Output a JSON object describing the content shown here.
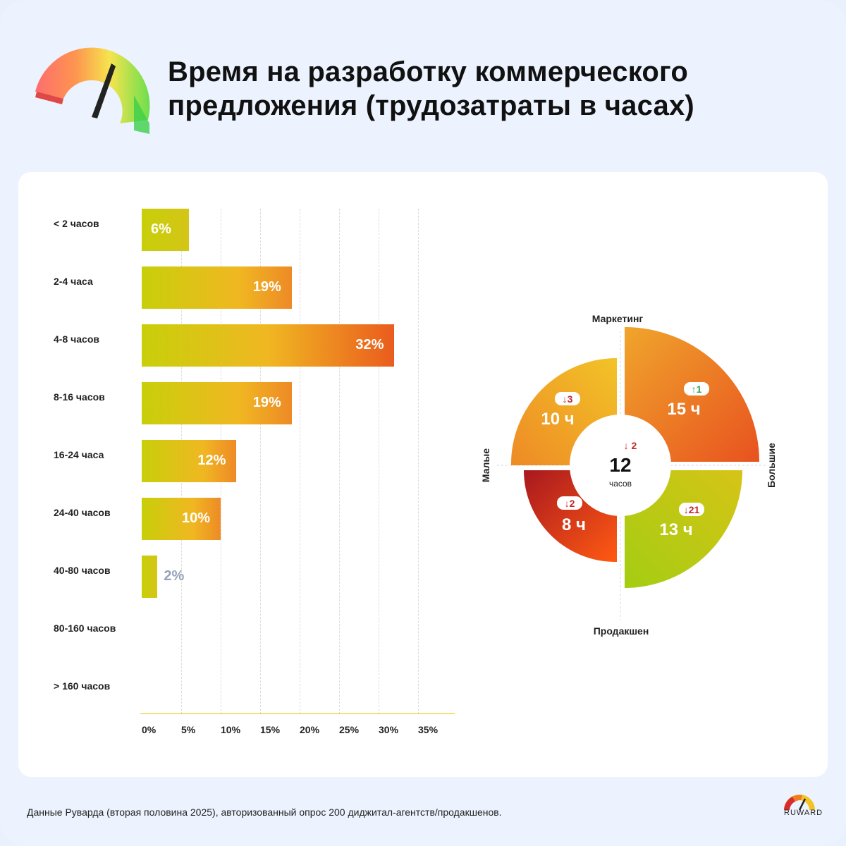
{
  "header": {
    "title_line1": "Время на разработку коммерческого",
    "title_line2": "предложения (трудозатраты в часах)"
  },
  "chart_data": [
    {
      "type": "bar",
      "orientation": "horizontal",
      "categories": [
        "< 2 часов",
        "2-4 часа",
        "4-8 часов",
        "8-16 часов",
        "16-24 часа",
        "24-40 часов",
        "40-80 часов",
        "80-160 часов",
        "> 160 часов"
      ],
      "values": [
        6,
        19,
        32,
        19,
        12,
        10,
        2,
        0,
        0
      ],
      "value_labels": [
        "6%",
        "19%",
        "32%",
        "19%",
        "12%",
        "10%",
        "2%",
        "",
        ""
      ],
      "xlim": [
        0,
        40
      ],
      "xticks": [
        "0%",
        "5%",
        "10%",
        "15%",
        "20%",
        "25%",
        "30%",
        "35%"
      ],
      "xtick_values": [
        0,
        5,
        10,
        15,
        20,
        25,
        30,
        35
      ],
      "grid": true,
      "colors": {
        "start": "#c8cf0a",
        "mid": "#f0b722",
        "end": "#ea5c1e",
        "small_label": "#95a2b8"
      }
    },
    {
      "type": "quadrant",
      "center": {
        "value": "12",
        "unit": "часов",
        "change": "↓ 2",
        "direction": "down"
      },
      "axes": {
        "top": "Маркетинг",
        "bottom": "Продакшен",
        "left": "Малые",
        "right": "Большие"
      },
      "segments": [
        {
          "position": "top-left",
          "value": "10 ч",
          "change": "3",
          "direction": "down",
          "hours": 10
        },
        {
          "position": "top-right",
          "value": "15 ч",
          "change": "1",
          "direction": "up",
          "hours": 15
        },
        {
          "position": "bottom-left",
          "value": "8 ч",
          "change": "2",
          "direction": "down",
          "hours": 8
        },
        {
          "position": "bottom-right",
          "value": "13 ч",
          "change": "21",
          "direction": "down",
          "hours": 13
        }
      ],
      "colors": {
        "down": "#c0282a",
        "up": "#2fa84f"
      }
    }
  ],
  "footer": {
    "source": "Данные Руварда (вторая половина 2025), авторизованный опрос 200 диджитал-агентств/продакшенов.",
    "brand": "RUWARD"
  }
}
